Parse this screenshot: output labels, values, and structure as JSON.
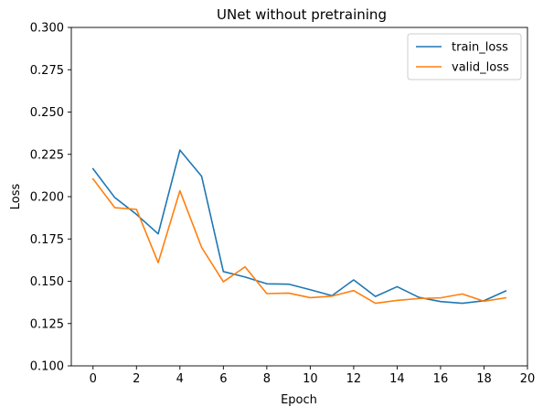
{
  "chart_data": {
    "type": "line",
    "title": "UNet without pretraining",
    "xlabel": "Epoch",
    "ylabel": "Loss",
    "xlim": [
      -1,
      20
    ],
    "ylim": [
      0.1,
      0.3
    ],
    "xticks": [
      0,
      2,
      4,
      6,
      8,
      10,
      12,
      14,
      16,
      18,
      20
    ],
    "xtick_labels": [
      "0",
      "2",
      "4",
      "6",
      "8",
      "10",
      "12",
      "14",
      "16",
      "18",
      "20"
    ],
    "yticks": [
      0.1,
      0.125,
      0.15,
      0.175,
      0.2,
      0.225,
      0.25,
      0.275,
      0.3
    ],
    "ytick_labels": [
      "0.100",
      "0.125",
      "0.150",
      "0.175",
      "0.200",
      "0.225",
      "0.250",
      "0.275",
      "0.300"
    ],
    "grid": false,
    "legend_position": "top-right",
    "x": [
      0,
      1,
      2,
      3,
      4,
      5,
      6,
      7,
      8,
      9,
      10,
      11,
      12,
      13,
      14,
      15,
      16,
      17,
      18,
      19
    ],
    "series": [
      {
        "name": "train_loss",
        "color": "#1f77b4",
        "values": [
          0.2165,
          0.1995,
          0.1895,
          0.178,
          0.2275,
          0.212,
          0.1557,
          0.1525,
          0.1485,
          0.1483,
          0.145,
          0.1415,
          0.1508,
          0.141,
          0.1468,
          0.1405,
          0.138,
          0.137,
          0.1385,
          0.1443
        ]
      },
      {
        "name": "valid_loss",
        "color": "#ff7f0e",
        "values": [
          0.2105,
          0.1935,
          0.1925,
          0.161,
          0.2035,
          0.17,
          0.1497,
          0.1585,
          0.1427,
          0.143,
          0.1403,
          0.1412,
          0.1445,
          0.137,
          0.1387,
          0.1398,
          0.1402,
          0.1425,
          0.1382,
          0.1402
        ]
      }
    ]
  }
}
